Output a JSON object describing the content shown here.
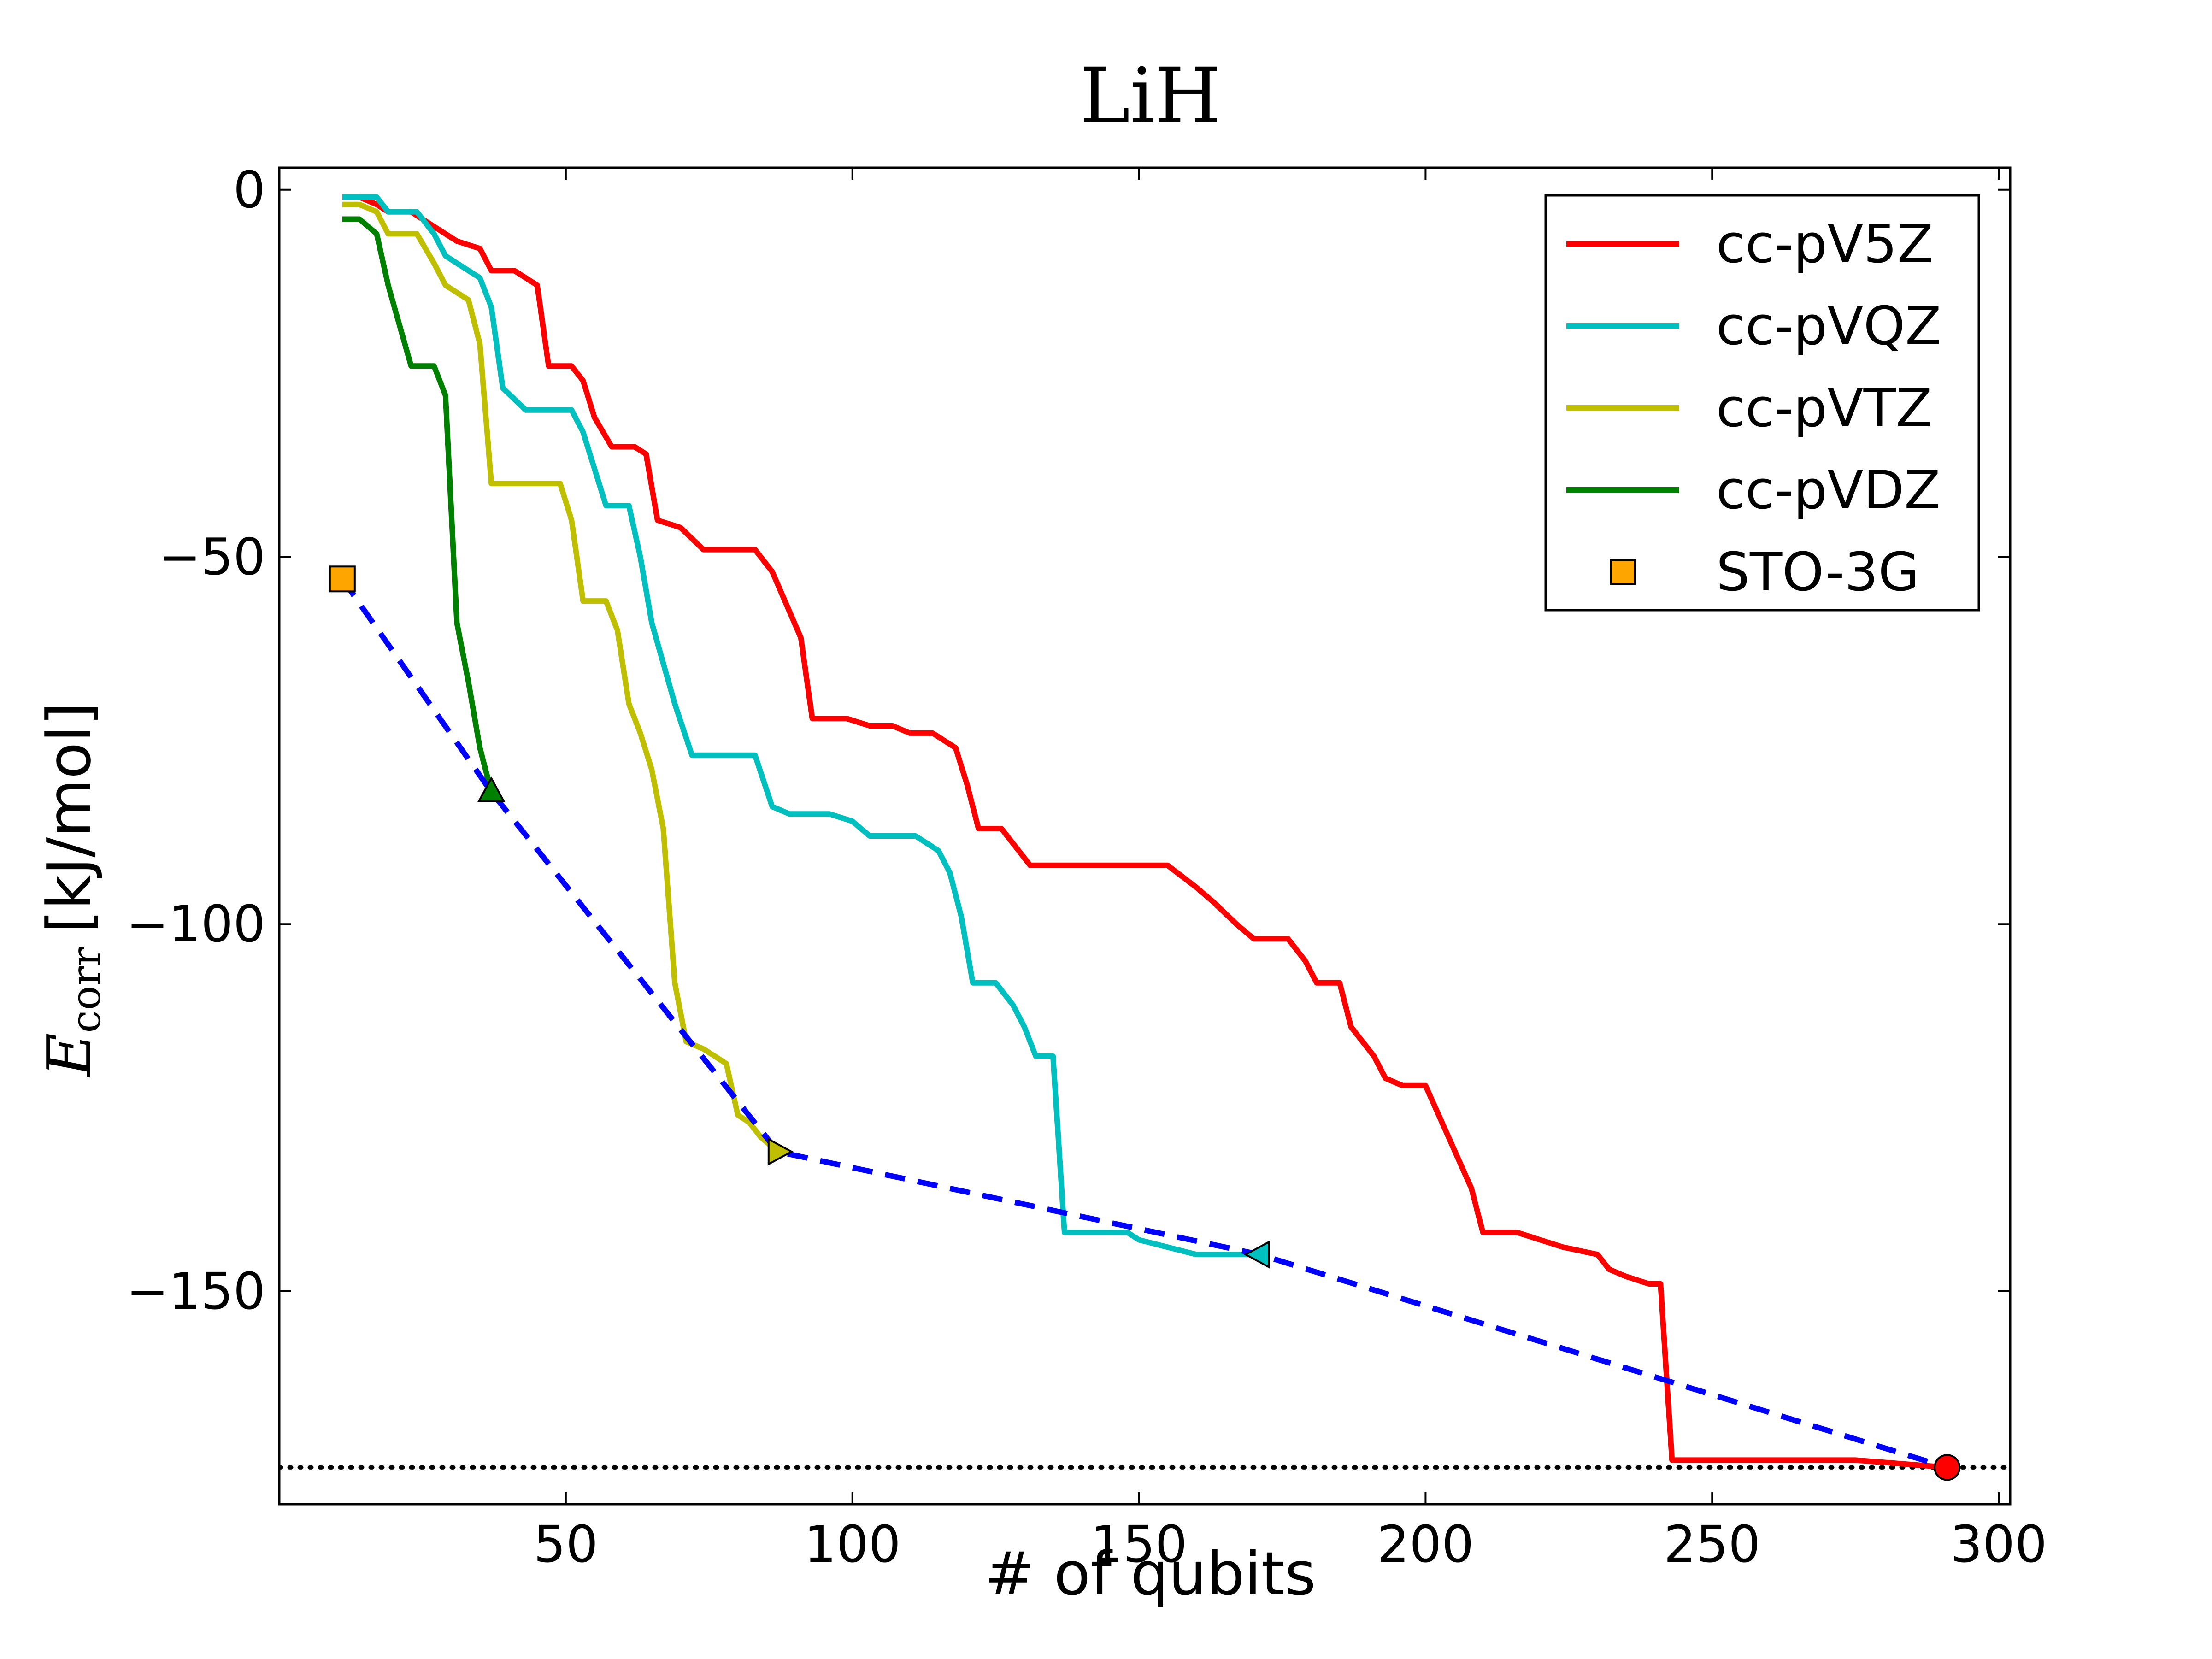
{
  "chart_data": {
    "type": "line",
    "title": "LiH",
    "xlabel": "# of qubits",
    "ylabel": {
      "symbol": "E",
      "subscript": "corr",
      "unit": "[kJ/mol]"
    },
    "xlim": [
      0,
      302
    ],
    "ylim": [
      -179,
      3
    ],
    "xticks": [
      50,
      100,
      150,
      200,
      250,
      300
    ],
    "yticks": [
      0,
      -50,
      -100,
      -150
    ],
    "ytick_labels": [
      "0",
      "−50",
      "−100",
      "−150"
    ],
    "grid": false,
    "legend_position": "top-right",
    "reference_line": {
      "y": -174,
      "style": "dotted",
      "color": "#000000"
    },
    "series": [
      {
        "name": "cc-pV5Z",
        "color": "#ff0000",
        "points": [
          [
            11,
            -1
          ],
          [
            14,
            -1
          ],
          [
            17,
            -2
          ],
          [
            19,
            -3
          ],
          [
            23,
            -3
          ],
          [
            27,
            -5
          ],
          [
            31,
            -7
          ],
          [
            35,
            -8
          ],
          [
            37,
            -11
          ],
          [
            41,
            -11
          ],
          [
            45,
            -13
          ],
          [
            47,
            -24
          ],
          [
            51,
            -24
          ],
          [
            53,
            -26
          ],
          [
            55,
            -31
          ],
          [
            58,
            -35
          ],
          [
            62,
            -35
          ],
          [
            64,
            -36
          ],
          [
            66,
            -45
          ],
          [
            70,
            -46
          ],
          [
            74,
            -49
          ],
          [
            83,
            -49
          ],
          [
            86,
            -52
          ],
          [
            91,
            -61
          ],
          [
            93,
            -72
          ],
          [
            99,
            -72
          ],
          [
            103,
            -73
          ],
          [
            107,
            -73
          ],
          [
            110,
            -74
          ],
          [
            114,
            -74
          ],
          [
            118,
            -76
          ],
          [
            120,
            -81
          ],
          [
            122,
            -87
          ],
          [
            126,
            -87
          ],
          [
            129,
            -90
          ],
          [
            131,
            -92
          ],
          [
            150,
            -92
          ],
          [
            155,
            -92
          ],
          [
            160,
            -95
          ],
          [
            163,
            -97
          ],
          [
            167,
            -100
          ],
          [
            170,
            -102
          ],
          [
            176,
            -102
          ],
          [
            179,
            -105
          ],
          [
            181,
            -108
          ],
          [
            185,
            -108
          ],
          [
            187,
            -114
          ],
          [
            191,
            -118
          ],
          [
            193,
            -121
          ],
          [
            196,
            -122
          ],
          [
            200,
            -122
          ],
          [
            204,
            -129
          ],
          [
            208,
            -136
          ],
          [
            210,
            -142
          ],
          [
            216,
            -142
          ],
          [
            220,
            -143
          ],
          [
            224,
            -144
          ],
          [
            230,
            -145
          ],
          [
            232,
            -147
          ],
          [
            235,
            -148
          ],
          [
            239,
            -149
          ],
          [
            241,
            -149
          ],
          [
            243,
            -173
          ],
          [
            262,
            -173
          ],
          [
            270,
            -173
          ],
          [
            275,
            -173
          ],
          [
            291,
            -174
          ]
        ]
      },
      {
        "name": "cc-pVQZ",
        "color": "#00bfbf",
        "points": [
          [
            11,
            -1
          ],
          [
            14,
            -1
          ],
          [
            17,
            -1
          ],
          [
            19,
            -3
          ],
          [
            24,
            -3
          ],
          [
            27,
            -6
          ],
          [
            29,
            -9
          ],
          [
            33,
            -11
          ],
          [
            35,
            -12
          ],
          [
            37,
            -16
          ],
          [
            39,
            -27
          ],
          [
            43,
            -30
          ],
          [
            51,
            -30
          ],
          [
            53,
            -33
          ],
          [
            57,
            -43
          ],
          [
            61,
            -43
          ],
          [
            63,
            -50
          ],
          [
            65,
            -59
          ],
          [
            69,
            -70
          ],
          [
            72,
            -77
          ],
          [
            83,
            -77
          ],
          [
            86,
            -84
          ],
          [
            89,
            -85
          ],
          [
            96,
            -85
          ],
          [
            100,
            -86
          ],
          [
            103,
            -88
          ],
          [
            111,
            -88
          ],
          [
            115,
            -90
          ],
          [
            117,
            -93
          ],
          [
            119,
            -99
          ],
          [
            121,
            -108
          ],
          [
            125,
            -108
          ],
          [
            128,
            -111
          ],
          [
            130,
            -114
          ],
          [
            132,
            -118
          ],
          [
            135,
            -118
          ],
          [
            137,
            -142
          ],
          [
            148,
            -142
          ],
          [
            150,
            -143
          ],
          [
            155,
            -144
          ],
          [
            160,
            -145
          ],
          [
            164,
            -145
          ],
          [
            171,
            -145
          ]
        ]
      },
      {
        "name": "cc-pVTZ",
        "color": "#bfbf00",
        "points": [
          [
            11,
            -2
          ],
          [
            14,
            -2
          ],
          [
            17,
            -3
          ],
          [
            19,
            -6
          ],
          [
            24,
            -6
          ],
          [
            27,
            -10
          ],
          [
            29,
            -13
          ],
          [
            33,
            -15
          ],
          [
            35,
            -21
          ],
          [
            37,
            -40
          ],
          [
            43,
            -40
          ],
          [
            49,
            -40
          ],
          [
            51,
            -45
          ],
          [
            53,
            -56
          ],
          [
            57,
            -56
          ],
          [
            59,
            -60
          ],
          [
            61,
            -70
          ],
          [
            63,
            -74
          ],
          [
            65,
            -79
          ],
          [
            67,
            -87
          ],
          [
            69,
            -108
          ],
          [
            71,
            -116
          ],
          [
            74,
            -117
          ],
          [
            78,
            -119
          ],
          [
            80,
            -126
          ],
          [
            82,
            -127
          ],
          [
            84,
            -129
          ],
          [
            87,
            -131
          ]
        ]
      },
      {
        "name": "cc-pVDZ",
        "color": "#008000",
        "points": [
          [
            11,
            -4
          ],
          [
            14,
            -4
          ],
          [
            17,
            -6
          ],
          [
            19,
            -13
          ],
          [
            23,
            -24
          ],
          [
            27,
            -24
          ],
          [
            29,
            -28
          ],
          [
            31,
            -59
          ],
          [
            33,
            -67
          ],
          [
            35,
            -76
          ],
          [
            37,
            -82
          ]
        ]
      },
      {
        "name": "STO-3G",
        "style": "marker",
        "color": "#ffa500",
        "points": [
          [
            11,
            -53
          ]
        ]
      }
    ],
    "extrapolation": {
      "color": "#0000ff",
      "style": "dashed",
      "points": [
        [
          11,
          -53
        ],
        [
          37,
          -82
        ],
        [
          87,
          -131
        ],
        [
          171,
          -145
        ],
        [
          291,
          -174
        ]
      ]
    },
    "endpoint_markers": [
      {
        "series": "cc-pVDZ",
        "shape": "triangle-up",
        "color": "#008000",
        "x": 37,
        "y": -82
      },
      {
        "series": "cc-pVTZ",
        "shape": "triangle-right",
        "color": "#bfbf00",
        "x": 87,
        "y": -131
      },
      {
        "series": "cc-pVQZ",
        "shape": "triangle-left",
        "color": "#00bfbf",
        "x": 171,
        "y": -145
      },
      {
        "series": "cc-pV5Z",
        "shape": "circle",
        "color": "#ff0000",
        "x": 291,
        "y": -174
      }
    ]
  }
}
